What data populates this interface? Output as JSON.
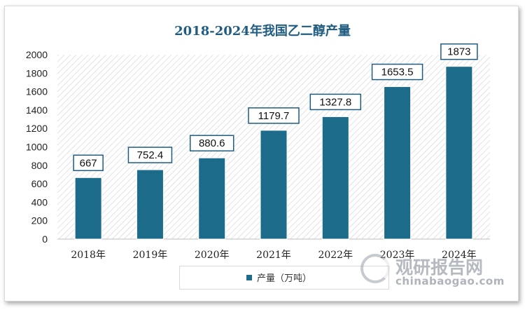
{
  "chart_data": {
    "type": "bar",
    "title": "2018-2024年我国乙二醇产量",
    "categories": [
      "2018年",
      "2019年",
      "2020年",
      "2021年",
      "2022年",
      "2023年",
      "2024年"
    ],
    "series": [
      {
        "name": "产量（万吨）",
        "values": [
          667,
          752.4,
          880.6,
          1179.7,
          1327.8,
          1653.5,
          1873
        ]
      }
    ],
    "data_labels": [
      "667",
      "752.4",
      "880.6",
      "1179.7",
      "1327.8",
      "1653.5",
      "1873"
    ],
    "ylim": [
      0,
      2000
    ],
    "yticks": [
      0,
      200,
      400,
      600,
      800,
      1000,
      1200,
      1400,
      1600,
      1800,
      2000
    ],
    "grid": false,
    "legend_position": "bottom",
    "colors": {
      "bar": "#1d6b8a",
      "title": "#1f5c80",
      "label_border": "#1f5c80"
    }
  },
  "watermark": {
    "cn": "观研报告网",
    "en": "chinabaogao.com"
  }
}
